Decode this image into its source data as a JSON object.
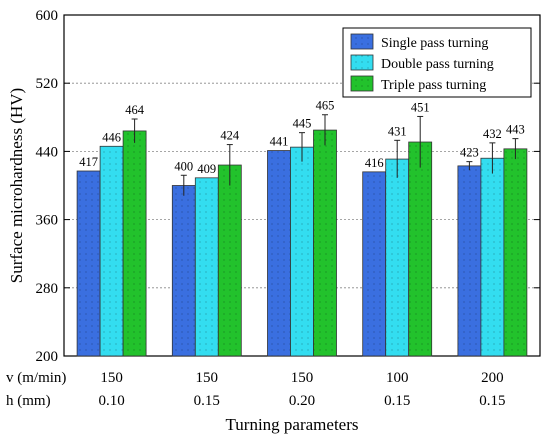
{
  "chart_data": {
    "type": "bar",
    "xlabel": "Turning parameters",
    "ylabel": "Surface microhardness (HV)",
    "ylim": [
      200,
      600
    ],
    "yticks": [
      200,
      280,
      360,
      440,
      520,
      600
    ],
    "grid": true,
    "legend_position": "top-right",
    "param_rows": [
      {
        "label": "v (m/min)",
        "values": [
          "150",
          "150",
          "150",
          "100",
          "200"
        ]
      },
      {
        "label": "h (mm)",
        "values": [
          "0.10",
          "0.15",
          "0.20",
          "0.15",
          "0.15"
        ]
      }
    ],
    "series": [
      {
        "name": "Single pass turning",
        "values": [
          417,
          400,
          441,
          416,
          423
        ],
        "errors": [
          0,
          12,
          0,
          0,
          5
        ],
        "color": "#3a6fe0"
      },
      {
        "name": "Double pass turning",
        "values": [
          446,
          409,
          445,
          431,
          432
        ],
        "errors": [
          0,
          0,
          17,
          22,
          18
        ],
        "color": "#33ddf0"
      },
      {
        "name": "Triple pass turning",
        "values": [
          464,
          424,
          465,
          451,
          443
        ],
        "errors": [
          14,
          24,
          18,
          30,
          12
        ],
        "color": "#22c22c"
      }
    ],
    "data_labels": [
      [
        "417",
        "446",
        "464"
      ],
      [
        "400",
        "409",
        "424"
      ],
      [
        "441",
        "445",
        "465"
      ],
      [
        "416",
        "431",
        "451"
      ],
      [
        "423",
        "432",
        "443"
      ]
    ]
  }
}
